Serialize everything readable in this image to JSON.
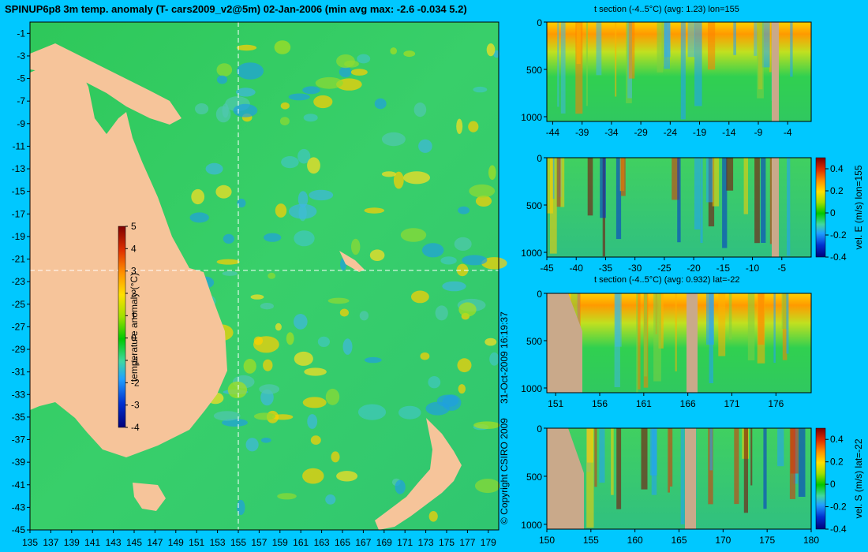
{
  "colors": {
    "background": "#00c8ff",
    "land": "#f6c49a",
    "landmask": "#c9a98a",
    "crosshair": "#ffffff"
  },
  "chart_data": [
    {
      "type": "heatmap",
      "title": "SPINUP6p8 3m temp. anomaly (T- cars2009_v2@5m) 02-Jan-2006 (min avg max: -2.6 -0.034 5.2)",
      "x_ticks": [
        "135",
        "137",
        "139",
        "141",
        "143",
        "145",
        "147",
        "149",
        "151",
        "153",
        "155",
        "157",
        "159",
        "161",
        "163",
        "165",
        "167",
        "169",
        "171",
        "173",
        "175",
        "177",
        "179"
      ],
      "y_ticks": [
        "-1",
        "-3",
        "-5",
        "-7",
        "-9",
        "-11",
        "-13",
        "-15",
        "-17",
        "-19",
        "-21",
        "-23",
        "-25",
        "-27",
        "-29",
        "-31",
        "-33",
        "-35",
        "-37",
        "-39",
        "-41",
        "-43",
        "-45"
      ],
      "xlim": [
        135,
        180
      ],
      "ylim": [
        -45,
        0
      ],
      "crosshair": {
        "lon": 155,
        "lat": -22
      },
      "colorbar": {
        "label": "temperature anomaly (°C)",
        "ticks": [
          "5",
          "4",
          "3",
          "2",
          "1",
          "0",
          "-1",
          "-2",
          "-3",
          "-4"
        ],
        "range": [
          -4,
          5
        ]
      },
      "credits": [
        "© Copyright CSIRO 2009",
        "31-Oct-2009 16:19:37"
      ]
    },
    {
      "type": "heatmap",
      "title": "t section (-4..5°C) (avg: 1.23) lon=155",
      "x_ticks": [
        "-44",
        "-39",
        "-34",
        "-29",
        "-24",
        "-19",
        "-14",
        "-9",
        "-4"
      ],
      "y_ticks": [
        "0",
        "500",
        "1000"
      ],
      "xlim": [
        -45,
        0
      ],
      "ylim": [
        1050,
        0
      ]
    },
    {
      "type": "heatmap",
      "title": "",
      "x_ticks": [
        "-45",
        "-40",
        "-35",
        "-30",
        "-25",
        "-20",
        "-15",
        "-10",
        "-5"
      ],
      "y_ticks": [
        "0",
        "500",
        "1000"
      ],
      "xlim": [
        -45,
        0
      ],
      "ylim": [
        1050,
        0
      ],
      "colorbar": {
        "label": "vel. E (m/s) lon=155",
        "ticks": [
          "0.4",
          "0.2",
          "0",
          "-0.2",
          "-0.4"
        ],
        "range": [
          -0.4,
          0.5
        ]
      }
    },
    {
      "type": "heatmap",
      "title": "t section (-4..5°C) (avg: 0.932) lat=-22",
      "x_ticks": [
        "151",
        "156",
        "161",
        "166",
        "171",
        "176"
      ],
      "y_ticks": [
        "0",
        "500",
        "1000"
      ],
      "xlim": [
        150,
        180
      ],
      "ylim": [
        1050,
        0
      ]
    },
    {
      "type": "heatmap",
      "title": "",
      "x_ticks": [
        "150",
        "155",
        "160",
        "165",
        "170",
        "175",
        "180"
      ],
      "y_ticks": [
        "0",
        "500",
        "1000"
      ],
      "xlim": [
        150,
        180
      ],
      "ylim": [
        1050,
        0
      ],
      "colorbar": {
        "label": "vel. S (m/s) lat=-22",
        "ticks": [
          "0.4",
          "0.2",
          "0",
          "-0.2",
          "-0.4"
        ],
        "range": [
          -0.4,
          0.5
        ]
      }
    }
  ]
}
